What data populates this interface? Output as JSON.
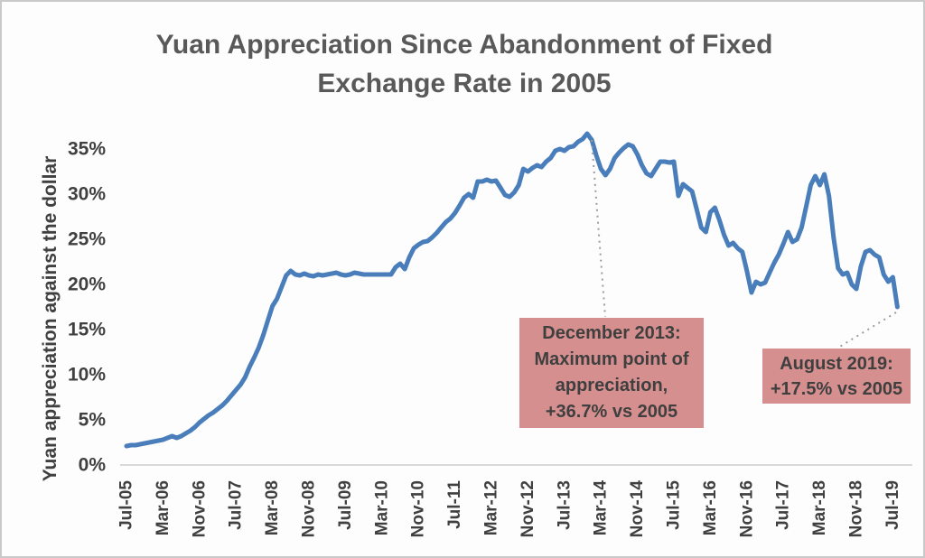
{
  "title": "Yuan Appreciation Since Abandonment of Fixed Exchange Rate in 2005",
  "y_axis_title": "Yuan appreciation against the dollar",
  "colors": {
    "line": "#4a7ebb",
    "axis_line": "#d9d9d9",
    "tick_text": "#404040",
    "title_text": "#595959",
    "callout_fill": "#d68f8f",
    "callout_text": "#3f3f3f",
    "leader_dots": "#9c9c9c",
    "frame_border": "#c9c9c9",
    "background": "#fdfdfd"
  },
  "annotations": [
    {
      "id": "dec-2013",
      "lines": [
        "December 2013:",
        "Maximum point of",
        "appreciation,",
        "+36.7% vs 2005"
      ],
      "anchor_value_pct": 36.7
    },
    {
      "id": "aug-2019",
      "lines": [
        "August 2019:",
        "+17.5% vs 2005"
      ],
      "anchor_value_pct": 17.5
    }
  ],
  "chart_data": {
    "type": "line",
    "title": "Yuan Appreciation Since Abandonment of Fixed Exchange Rate in 2005",
    "xlabel": "",
    "ylabel": "Yuan appreciation against the dollar",
    "x_start": "Jul-2005",
    "x_end": "Aug-2019",
    "x_frequency": "monthly",
    "ylim": [
      0,
      35
    ],
    "y_tick_step": 5,
    "y_tick_labels": [
      "0%",
      "5%",
      "10%",
      "15%",
      "20%",
      "25%",
      "30%",
      "35%"
    ],
    "x_tick_labels": [
      "Jul-05",
      "Mar-06",
      "Nov-06",
      "Jul-07",
      "Mar-08",
      "Nov-08",
      "Jul-09",
      "Mar-10",
      "Nov-10",
      "Jul-11",
      "Mar-12",
      "Nov-12",
      "Jul-13",
      "Mar-14",
      "Nov-14",
      "Jul-15",
      "Mar-16",
      "Nov-16",
      "Jul-17",
      "Mar-18",
      "Nov-18",
      "Jul-19"
    ],
    "x_tick_indices": [
      0,
      8,
      16,
      24,
      32,
      40,
      48,
      56,
      64,
      72,
      80,
      88,
      96,
      104,
      112,
      120,
      128,
      136,
      144,
      152,
      160,
      168
    ],
    "grid": false,
    "legend": false,
    "series": [
      {
        "name": "Yuan appreciation against the dollar (% vs 2005)",
        "values": [
          2.1,
          2.2,
          2.2,
          2.3,
          2.4,
          2.5,
          2.6,
          2.7,
          2.8,
          3.0,
          3.2,
          3.0,
          3.2,
          3.5,
          3.8,
          4.2,
          4.7,
          5.1,
          5.5,
          5.8,
          6.2,
          6.6,
          7.1,
          7.7,
          8.3,
          8.9,
          9.7,
          10.9,
          11.9,
          13.0,
          14.4,
          16.0,
          17.6,
          18.4,
          19.7,
          21.0,
          21.5,
          21.1,
          21.0,
          21.2,
          21.0,
          20.9,
          21.1,
          21.0,
          21.1,
          21.2,
          21.3,
          21.1,
          21.0,
          21.1,
          21.3,
          21.2,
          21.1,
          21.1,
          21.1,
          21.1,
          21.1,
          21.1,
          21.1,
          21.9,
          22.3,
          21.7,
          23.0,
          24.0,
          24.4,
          24.7,
          24.8,
          25.2,
          25.7,
          26.3,
          26.9,
          27.3,
          27.9,
          28.7,
          29.6,
          30.0,
          29.6,
          31.4,
          31.4,
          31.6,
          31.4,
          31.5,
          30.7,
          29.9,
          29.7,
          30.2,
          31.0,
          32.8,
          32.5,
          32.9,
          33.2,
          33.0,
          33.6,
          34.0,
          34.8,
          35.0,
          34.8,
          35.2,
          35.3,
          35.8,
          36.1,
          36.7,
          36.0,
          34.3,
          32.8,
          32.1,
          32.8,
          34.0,
          34.6,
          35.1,
          35.5,
          35.3,
          34.4,
          33.2,
          32.3,
          32.0,
          32.8,
          33.6,
          33.6,
          33.5,
          33.6,
          29.8,
          31.1,
          30.7,
          30.3,
          28.3,
          26.3,
          25.8,
          28.0,
          28.5,
          27.1,
          25.5,
          24.3,
          24.6,
          24.0,
          23.6,
          21.5,
          19.1,
          20.3,
          20.0,
          20.2,
          21.3,
          22.4,
          23.3,
          24.5,
          25.8,
          24.7,
          25.0,
          26.3,
          28.6,
          31.0,
          32.0,
          31.0,
          32.2,
          29.8,
          25.2,
          21.8,
          21.1,
          21.3,
          20.0,
          19.5,
          22.0,
          23.6,
          23.8,
          23.3,
          23.0,
          21.1,
          20.3,
          20.8,
          17.5
        ]
      }
    ],
    "annotations": [
      {
        "x": "Dec-2013",
        "text": "December 2013: Maximum point of appreciation, +36.7% vs 2005"
      },
      {
        "x": "Aug-2019",
        "text": "August 2019: +17.5% vs 2005"
      }
    ]
  }
}
